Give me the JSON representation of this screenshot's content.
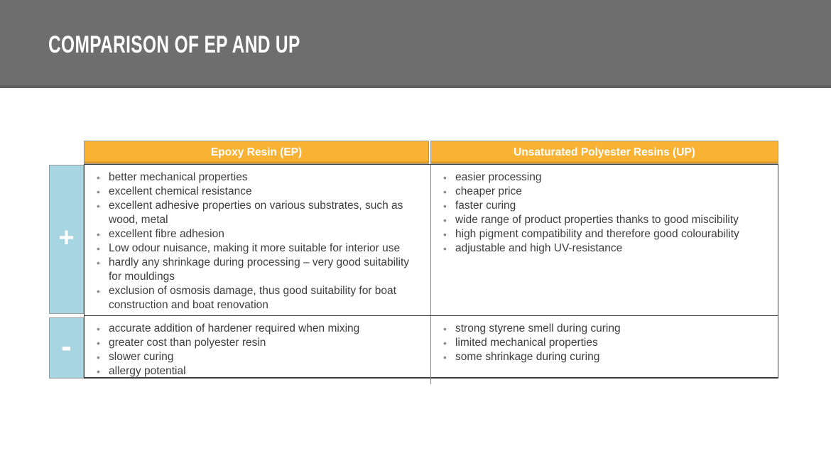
{
  "slide": {
    "title": "COMPARISON OF EP AND UP"
  },
  "table": {
    "columns": [
      {
        "label": "Epoxy Resin (EP)"
      },
      {
        "label": "Unsaturated Polyester Resins (UP)"
      }
    ],
    "rows": [
      {
        "sign": "+",
        "ep": [
          "better mechanical properties",
          "excellent chemical resistance",
          "excellent adhesive properties on various substrates, such as wood, metal",
          "excellent fibre adhesion",
          "Low odour nuisance, making it more suitable for interior use",
          "hardly any shrinkage during processing – very good suitability for mouldings",
          "exclusion of osmosis damage, thus good suitability for boat construction and boat renovation"
        ],
        "up": [
          "easier processing",
          "cheaper price",
          "faster curing",
          "wide range of product properties thanks to good miscibility",
          "high pigment compatibility and therefore good colourability",
          "adjustable and high UV-resistance"
        ]
      },
      {
        "sign": "-",
        "ep": [
          "accurate addition of hardener required when mixing",
          "greater cost than polyester resin",
          "slower curing",
          "allergy potential"
        ],
        "up": [
          "strong styrene smell during curing",
          "limited mechanical properties",
          "some shrinkage during curing"
        ]
      }
    ]
  },
  "colors": {
    "band_gray": "#6e6e6e",
    "accent_orange": "#f9b233",
    "accent_blue": "#a8d5e2",
    "text_dark": "#3d3d3d"
  }
}
